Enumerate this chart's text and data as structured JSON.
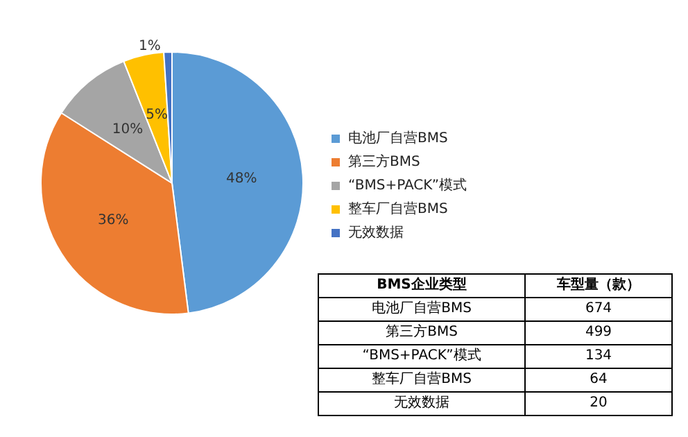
{
  "chart_data": [
    {
      "type": "pie",
      "categories": [
        "电池厂自营BMS",
        "第三方BMS",
        "“BMS+PACK”模式",
        "整车厂自营BMS",
        "无效数据"
      ],
      "values": [
        48,
        36,
        10,
        5,
        1
      ],
      "value_labels": [
        "48%",
        "36%",
        "10%",
        "5%",
        "1%"
      ],
      "colors": [
        "#5b9bd5",
        "#ed7d31",
        "#a5a5a5",
        "#ffc000",
        "#4472c4"
      ],
      "data_labels": true,
      "legend": "right"
    },
    {
      "type": "other",
      "xlabel": "BMS企业类型",
      "ylabel": "车型量（款）",
      "categories": [
        "电池厂自营BMS",
        "第三方BMS",
        "“BMS+PACK”模式",
        "整车厂自营BMS",
        "无效数据"
      ],
      "values": [
        674,
        499,
        134,
        64,
        20
      ],
      "data_labels": true
    }
  ]
}
